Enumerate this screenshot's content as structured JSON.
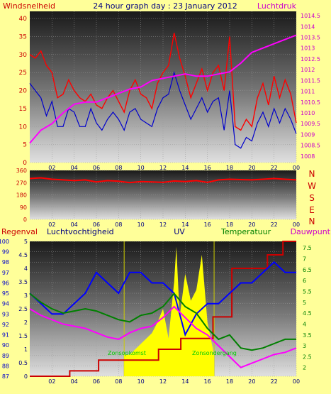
{
  "header": {
    "left_label": "Windsnelheid",
    "title": "24 hour graph day : 23 January 2012",
    "right_label": "Luchtdruk"
  },
  "colors": {
    "background": "#ffff99",
    "wind": "#ff0000",
    "gust": "#0000cc",
    "pressure": "#ff00ff",
    "direction": "#ff0000",
    "humidity": "#0000ff",
    "temperature": "#008000",
    "dewpoint": "#ff00ff",
    "rain": "#cc0000",
    "uv": "#ffff00",
    "left_axis_text": "#cc0000",
    "pressure_axis_text": "#cc00cc",
    "uv_axis_text": "#000080",
    "temp_axis_text": "#008000",
    "direction_letters": "#cc0000"
  },
  "x_ticks": [
    "02",
    "04",
    "06",
    "08",
    "10",
    "12",
    "14",
    "16",
    "18",
    "20",
    "22",
    "00"
  ],
  "panel3_labels": {
    "regenval": "Regenval",
    "luchtvochtigheid": "Luchtvochtigheid",
    "uv": "UV",
    "temperatuur": "Temperatuur",
    "dauwpunt": "Dauwpunt",
    "zonsopkomst": "Zonsopkomst",
    "zonsondergang": "Zonsondergang"
  },
  "direction_letters": [
    "N",
    "W",
    "S",
    "E",
    "N"
  ],
  "chart_data": [
    {
      "type": "line",
      "xlabel": "",
      "ylabel": "Windsnelheid",
      "y2label": "Luchtdruk",
      "xlim": [
        0,
        24
      ],
      "ylim": [
        0,
        42
      ],
      "y2lim": [
        1007.7,
        1014.7
      ],
      "yticks": [
        0,
        5,
        10,
        15,
        20,
        25,
        30,
        35,
        40
      ],
      "y2ticks": [
        "1008",
        "1008.5",
        "1009",
        "1009.5",
        "1010",
        "1010.5",
        "1011",
        "1011.5",
        "1012",
        "1012.5",
        "1013",
        "1013.5",
        "1014",
        "1014.5"
      ],
      "grid": true,
      "series": [
        {
          "name": "",
          "axis": "left",
          "x": [
            0,
            0.5,
            1,
            1.5,
            2,
            2.5,
            3,
            3.5,
            4,
            4.5,
            5,
            5.5,
            6,
            6.5,
            7,
            7.5,
            8,
            8.5,
            9,
            9.5,
            10,
            10.5,
            11,
            11.5,
            12,
            12.5,
            13,
            13.5,
            14,
            14.5,
            15,
            15.5,
            16,
            16.5,
            17,
            17.5,
            18,
            18.5,
            19,
            19.5,
            20,
            20.5,
            21,
            21.5,
            22,
            22.5,
            23,
            23.5,
            24
          ],
          "values": [
            30,
            29,
            31,
            27,
            25,
            18,
            19,
            23,
            20,
            18,
            17,
            19,
            16,
            15,
            18,
            20,
            17,
            14,
            20,
            23,
            19,
            18,
            15,
            22,
            25,
            27,
            36,
            29,
            24,
            18,
            22,
            26,
            20,
            25,
            27,
            20,
            35,
            10,
            9,
            12,
            10,
            18,
            22,
            16,
            24,
            18,
            23,
            19,
            11
          ]
        },
        {
          "name": "",
          "axis": "left",
          "x": [
            0,
            0.5,
            1,
            1.5,
            2,
            2.5,
            3,
            3.5,
            4,
            4.5,
            5,
            5.5,
            6,
            6.5,
            7,
            7.5,
            8,
            8.5,
            9,
            9.5,
            10,
            10.5,
            11,
            11.5,
            12,
            12.5,
            13,
            13.5,
            14,
            14.5,
            15,
            15.5,
            16,
            16.5,
            17,
            17.5,
            18,
            18.5,
            19,
            19.5,
            20,
            20.5,
            21,
            21.5,
            22,
            22.5,
            23,
            23.5,
            24
          ],
          "values": [
            22,
            20,
            18,
            13,
            17,
            10,
            10,
            15,
            14,
            10,
            10,
            15,
            11,
            9,
            12,
            14,
            12,
            9,
            14,
            15,
            12,
            11,
            10,
            15,
            18,
            19,
            25,
            20,
            16,
            12,
            15,
            18,
            14,
            17,
            18,
            9,
            20,
            5,
            4,
            7,
            6,
            11,
            14,
            10,
            15,
            11,
            15,
            12,
            8
          ]
        },
        {
          "name": "",
          "axis": "right",
          "x": [
            0,
            1,
            2,
            3,
            4,
            5,
            6,
            7,
            8,
            9,
            10,
            11,
            12,
            13,
            14,
            15,
            16,
            17,
            18,
            19,
            20,
            21,
            22,
            23,
            24
          ],
          "values": [
            1008.6,
            1009.2,
            1009.5,
            1010.0,
            1010.4,
            1010.5,
            1010.5,
            1010.7,
            1010.9,
            1011.1,
            1011.2,
            1011.5,
            1011.6,
            1011.7,
            1011.8,
            1011.7,
            1011.7,
            1011.8,
            1011.9,
            1012.3,
            1012.8,
            1013.0,
            1013.2,
            1013.4,
            1013.6
          ]
        }
      ]
    },
    {
      "type": "line",
      "ylabel": "",
      "xlim": [
        0,
        24
      ],
      "ylim": [
        0,
        360
      ],
      "yticks": [
        0,
        90,
        180,
        270,
        360
      ],
      "grid": true,
      "series": [
        {
          "name": "",
          "x": [
            0,
            1,
            2,
            3,
            4,
            5,
            6,
            7,
            8,
            9,
            10,
            11,
            12,
            13,
            14,
            15,
            16,
            17,
            18,
            19,
            20,
            21,
            22,
            23,
            24
          ],
          "values": [
            300,
            305,
            295,
            290,
            285,
            290,
            275,
            285,
            280,
            270,
            278,
            275,
            272,
            282,
            278,
            285,
            272,
            290,
            295,
            292,
            290,
            295,
            300,
            295,
            290
          ]
        }
      ]
    },
    {
      "type": "line",
      "xlim": [
        0,
        24
      ],
      "ylabel": "Luchtvochtigheid",
      "ylim": [
        87,
        100
      ],
      "yticks": [
        87,
        88,
        89,
        90,
        91,
        92,
        93,
        94,
        95,
        96,
        97,
        98,
        99,
        100
      ],
      "y_inner_lim": [
        0,
        5
      ],
      "y_inner_ticks": [
        "0",
        "0.5",
        "1",
        "1.5",
        "2",
        "2.5",
        "3",
        "3.5",
        "4",
        "4.5",
        "5"
      ],
      "y2lim": [
        1.6,
        7.8
      ],
      "y2ticks": [
        "2",
        "2.5",
        "3",
        "3.5",
        "4",
        "4.5",
        "5",
        "5.5",
        "6",
        "6.5",
        "7",
        "7.5"
      ],
      "grid": true,
      "series": [
        {
          "name": "Regenval",
          "axis": "inner",
          "x": [
            0,
            3.6,
            3.6,
            6.2,
            6.2,
            11.6,
            11.6,
            13.6,
            13.6,
            16.5,
            16.5,
            18.2,
            18.2,
            21.4,
            21.4,
            22.8,
            22.8,
            24
          ],
          "values": [
            0,
            0,
            0.2,
            0.2,
            0.6,
            0.6,
            1.0,
            1.0,
            1.4,
            1.4,
            2.2,
            2.2,
            4.0,
            4.0,
            4.5,
            4.5,
            5.0,
            5.0
          ]
        },
        {
          "name": "Luchtvochtigheid",
          "axis": "left",
          "x": [
            0,
            1,
            2,
            3,
            4,
            5,
            6,
            7,
            8,
            9,
            10,
            11,
            12,
            13,
            14,
            15,
            16,
            17,
            18,
            19,
            20,
            21,
            22,
            23,
            24
          ],
          "values": [
            95,
            94,
            93,
            93,
            94,
            95,
            97,
            96,
            95,
            97,
            97,
            96,
            96,
            95,
            91,
            93,
            94,
            94,
            95,
            96,
            96,
            97,
            98,
            97,
            97
          ]
        },
        {
          "name": "Temperatuur",
          "axis": "right",
          "x": [
            0,
            1,
            2,
            3,
            4,
            5,
            6,
            7,
            8,
            9,
            10,
            11,
            12,
            13,
            14,
            15,
            16,
            17,
            18,
            19,
            20,
            21,
            22,
            23,
            24
          ],
          "values": [
            5.4,
            5.0,
            4.7,
            4.5,
            4.6,
            4.7,
            4.6,
            4.4,
            4.2,
            4.1,
            4.4,
            4.5,
            4.8,
            5.4,
            4.8,
            4.5,
            3.8,
            3.3,
            3.5,
            2.9,
            2.8,
            2.9,
            3.1,
            3.3,
            3.3
          ]
        },
        {
          "name": "Dauwpunt",
          "axis": "right",
          "x": [
            0,
            1,
            2,
            3,
            4,
            5,
            6,
            7,
            8,
            9,
            10,
            11,
            12,
            13,
            14,
            15,
            16,
            17,
            18,
            19,
            20,
            21,
            22,
            23,
            24
          ],
          "values": [
            4.7,
            4.4,
            4.2,
            4.0,
            3.9,
            3.8,
            3.6,
            3.4,
            3.3,
            3.6,
            3.8,
            3.9,
            4.3,
            4.8,
            4.3,
            3.8,
            3.5,
            3.0,
            2.5,
            2.0,
            2.2,
            2.4,
            2.6,
            2.7,
            2.9
          ]
        },
        {
          "name": "UV",
          "axis": "inner",
          "x": [
            8.5,
            8.6,
            9,
            10,
            11,
            11.5,
            12,
            12.5,
            13,
            13.2,
            13.5,
            14,
            14.5,
            15,
            15.5,
            16,
            16.5,
            16.6
          ],
          "values": [
            0,
            0.3,
            0.8,
            1.2,
            1.6,
            2.0,
            2.5,
            1.4,
            3.5,
            4.8,
            2.2,
            3.8,
            2.8,
            3.2,
            4.5,
            2.0,
            1.0,
            0
          ]
        }
      ],
      "annotations": [
        "Zonsopkomst",
        "Zonsondergang"
      ]
    }
  ]
}
